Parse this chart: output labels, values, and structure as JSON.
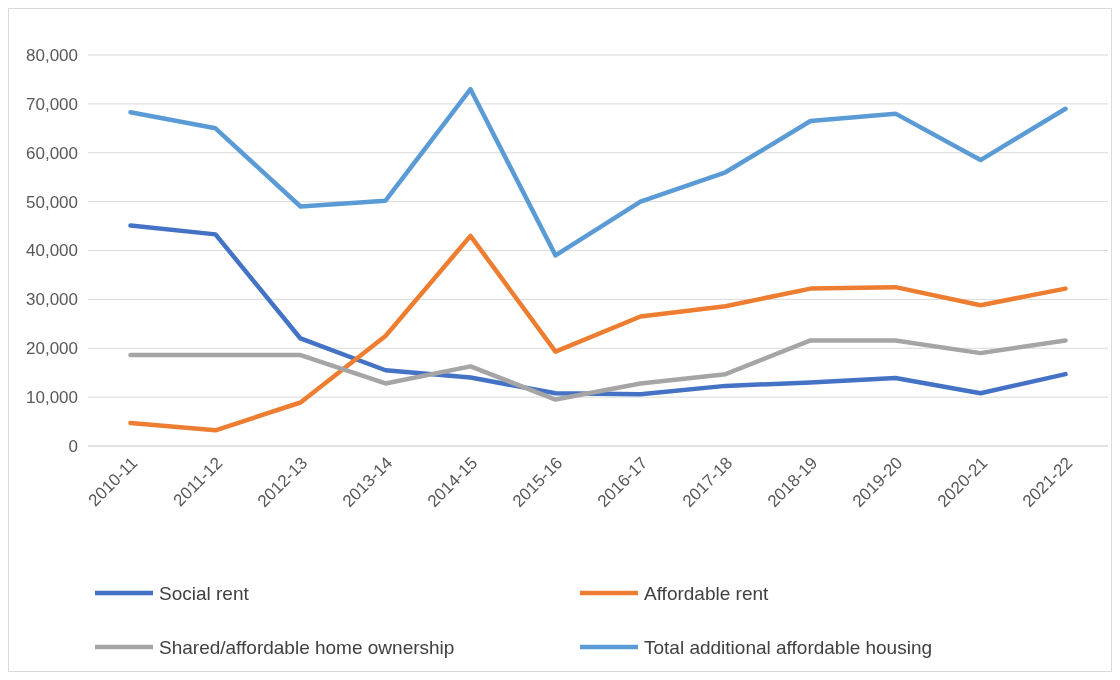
{
  "chart_data": {
    "type": "line",
    "categories": [
      "2010-11",
      "2011-12",
      "2012-13",
      "2013-14",
      "2014-15",
      "2015-16",
      "2016-17",
      "2017-18",
      "2018-19",
      "2019-20",
      "2020-21",
      "2021-22"
    ],
    "series": [
      {
        "name": "Social rent",
        "color": "#4472c4",
        "values": [
          45100,
          43300,
          22000,
          15500,
          14000,
          10800,
          10600,
          12300,
          13000,
          13900,
          10800,
          14700
        ]
      },
      {
        "name": "Affordable rent",
        "color": "#ed7d31",
        "values": [
          4700,
          3200,
          8900,
          22500,
          43000,
          19300,
          26500,
          28600,
          32200,
          32500,
          28800,
          32200
        ]
      },
      {
        "name": "Shared/affordable home ownership",
        "color": "#a5a5a5",
        "values": [
          18600,
          18600,
          18600,
          12800,
          16300,
          9500,
          12800,
          14700,
          21600,
          21600,
          19000,
          21600
        ]
      },
      {
        "name": "Total additional affordable housing",
        "color": "#5b9bd5",
        "values": [
          68300,
          65000,
          49000,
          50200,
          73000,
          39000,
          50000,
          56000,
          66500,
          68000,
          58500,
          69000
        ]
      }
    ],
    "ylim": [
      0,
      80000
    ],
    "yticks": [
      {
        "value": 0,
        "label": "0"
      },
      {
        "value": 10000,
        "label": "10,000"
      },
      {
        "value": 20000,
        "label": "20,000"
      },
      {
        "value": 30000,
        "label": "30,000"
      },
      {
        "value": 40000,
        "label": "40,000"
      },
      {
        "value": 50000,
        "label": "50,000"
      },
      {
        "value": 60000,
        "label": "60,000"
      },
      {
        "value": 70000,
        "label": "70,000"
      },
      {
        "value": 80000,
        "label": "80,000"
      }
    ],
    "grid": "y",
    "legend": "bottom",
    "marker": "none",
    "line_style": "solid"
  }
}
